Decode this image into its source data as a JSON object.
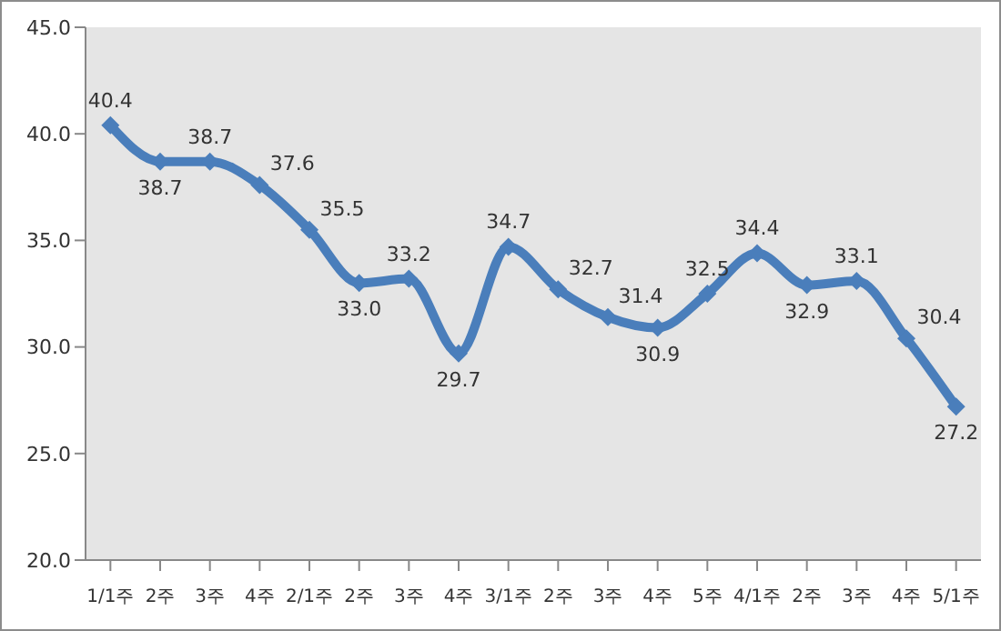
{
  "chart_data": {
    "type": "line",
    "categories": [
      "1/1주",
      "2주",
      "3주",
      "4주",
      "2/1주",
      "2주",
      "3주",
      "4주",
      "3/1주",
      "2주",
      "3주",
      "4주",
      "5주",
      "4/1주",
      "2주",
      "3주",
      "4주",
      "5/1주"
    ],
    "series": [
      {
        "color": "#4a7ebb",
        "values": [
          40.4,
          38.7,
          38.7,
          37.6,
          35.5,
          33.0,
          33.2,
          29.7,
          34.7,
          32.7,
          31.4,
          30.9,
          32.5,
          34.4,
          32.9,
          33.1,
          30.4,
          27.2
        ],
        "value_labels": [
          "40.4",
          "38.7",
          "38.7",
          "37.6",
          "35.5",
          "33.0",
          "33.2",
          "29.7",
          "34.7",
          "32.7",
          "31.4",
          "30.9",
          "32.5",
          "34.4",
          "32.9",
          "33.1",
          "30.4",
          "27.2"
        ]
      }
    ],
    "ylim": [
      20,
      45
    ],
    "yticks": [
      {
        "value": 20,
        "label": "20.0"
      },
      {
        "value": 25,
        "label": "25.0"
      },
      {
        "value": 30,
        "label": "30.0"
      },
      {
        "value": 35,
        "label": "35.0"
      },
      {
        "value": 40,
        "label": "40.0"
      },
      {
        "value": 45,
        "label": "45.0"
      }
    ],
    "grid": false,
    "marker": "diamond",
    "line_style": "solid"
  }
}
